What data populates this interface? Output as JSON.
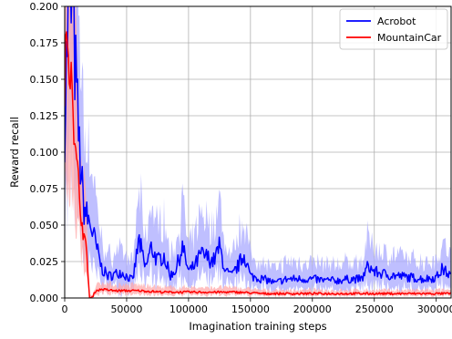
{
  "chart_data": {
    "type": "line",
    "xlabel": "Imagination training steps",
    "ylabel": "Reward recall",
    "xlim": [
      0,
      312000
    ],
    "ylim": [
      0,
      0.2
    ],
    "x_ticks": [
      0,
      50000,
      100000,
      150000,
      200000,
      250000,
      300000
    ],
    "x_tick_labels": [
      "0",
      "50000",
      "100000",
      "150000",
      "200000",
      "250000",
      "300000"
    ],
    "y_ticks": [
      0,
      0.025,
      0.05,
      0.075,
      0.1,
      0.125,
      0.15,
      0.175,
      0.2
    ],
    "y_tick_labels": [
      "0.000",
      "0.025",
      "0.050",
      "0.075",
      "0.100",
      "0.125",
      "0.150",
      "0.175",
      "0.200"
    ],
    "grid": true,
    "legend_position": "top-right",
    "series": [
      {
        "name": "Acrobot",
        "color": "#0000ff",
        "band_color": "#aaaaff",
        "x": [
          0,
          3000,
          6000,
          9000,
          12000,
          15000,
          18000,
          21000,
          24000,
          27000,
          30000,
          35000,
          40000,
          45000,
          50000,
          55000,
          60000,
          65000,
          70000,
          75000,
          80000,
          85000,
          90000,
          95000,
          100000,
          105000,
          110000,
          115000,
          120000,
          125000,
          130000,
          135000,
          140000,
          145000,
          150000,
          155000,
          160000,
          165000,
          170000,
          175000,
          180000,
          190000,
          200000,
          210000,
          220000,
          230000,
          240000,
          245000,
          250000,
          260000,
          270000,
          280000,
          290000,
          300000,
          305000,
          312000
        ],
        "y": [
          0.12,
          0.2,
          0.2,
          0.15,
          0.1,
          0.065,
          0.055,
          0.05,
          0.04,
          0.03,
          0.02,
          0.015,
          0.016,
          0.018,
          0.015,
          0.012,
          0.04,
          0.02,
          0.035,
          0.025,
          0.03,
          0.015,
          0.02,
          0.035,
          0.018,
          0.022,
          0.03,
          0.028,
          0.025,
          0.035,
          0.018,
          0.015,
          0.022,
          0.03,
          0.015,
          0.014,
          0.013,
          0.012,
          0.01,
          0.012,
          0.013,
          0.013,
          0.013,
          0.012,
          0.012,
          0.013,
          0.013,
          0.022,
          0.018,
          0.016,
          0.015,
          0.014,
          0.013,
          0.014,
          0.02,
          0.015
        ]
      },
      {
        "name": "MountainCar",
        "color": "#ff0000",
        "band_color": "#ffaaaa",
        "x": [
          0,
          2000,
          4000,
          6000,
          8000,
          10000,
          12000,
          14000,
          16000,
          18000,
          20000,
          22000,
          25000,
          30000,
          40000,
          50000,
          60000,
          80000,
          100000,
          120000,
          140000,
          160000,
          180000,
          200000,
          220000,
          240000,
          260000,
          280000,
          300000,
          312000
        ],
        "y": [
          0.15,
          0.18,
          0.165,
          0.16,
          0.1,
          0.09,
          0.07,
          0.05,
          0.04,
          0.03,
          0.0,
          0.0,
          0.005,
          0.006,
          0.005,
          0.005,
          0.005,
          0.004,
          0.004,
          0.004,
          0.004,
          0.003,
          0.003,
          0.003,
          0.003,
          0.003,
          0.003,
          0.003,
          0.003,
          0.003
        ]
      }
    ]
  }
}
